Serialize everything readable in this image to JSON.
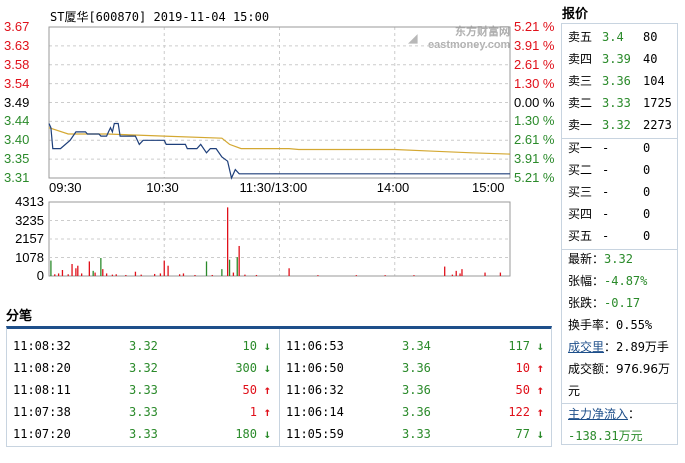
{
  "chart": {
    "title": "ST厦华[600870] 2019-11-04 15:00",
    "watermark": "东方财富网 eastmoney.com",
    "price_labels": [
      "3.67",
      "3.63",
      "3.58",
      "3.54",
      "3.49",
      "3.44",
      "3.40",
      "3.35",
      "3.31"
    ],
    "pct_labels": [
      "5.21 %",
      "3.91 %",
      "2.61 %",
      "1.30 %",
      "0.00 %",
      "1.30 %",
      "2.61 %",
      "3.91 %",
      "5.21 %"
    ],
    "time_labels": [
      "09:30",
      "10:30",
      "11:30/13:00",
      "14:00",
      "15:00"
    ],
    "vol_labels": [
      "4313",
      "3235",
      "2157",
      "1078",
      "0"
    ],
    "colors": {
      "up": "#e0101a",
      "down": "#2a8a2a",
      "flat": "#000000",
      "price_line": "#1e3f7a",
      "avg_line": "#d4a832"
    }
  },
  "chart_data": {
    "type": "line",
    "price_range": [
      3.31,
      3.67
    ],
    "prev_close": 3.49,
    "x_unit": "minutes since 09:30 (trading minutes)",
    "price": [
      [
        0,
        3.44
      ],
      [
        1,
        3.43
      ],
      [
        2,
        3.38
      ],
      [
        6,
        3.38
      ],
      [
        11,
        3.4
      ],
      [
        14,
        3.42
      ],
      [
        19,
        3.42
      ],
      [
        20,
        3.415
      ],
      [
        26,
        3.415
      ],
      [
        27,
        3.41
      ],
      [
        30,
        3.41
      ],
      [
        31,
        3.42
      ],
      [
        32,
        3.43
      ],
      [
        33,
        3.42
      ],
      [
        34,
        3.44
      ],
      [
        36,
        3.44
      ],
      [
        37,
        3.41
      ],
      [
        45,
        3.41
      ],
      [
        47,
        3.39
      ],
      [
        49,
        3.4
      ],
      [
        60,
        3.4
      ],
      [
        61,
        3.39
      ],
      [
        71,
        3.39
      ],
      [
        72,
        3.38
      ],
      [
        77,
        3.38
      ],
      [
        79,
        3.39
      ],
      [
        82,
        3.37
      ],
      [
        84,
        3.38
      ],
      [
        87,
        3.38
      ],
      [
        90,
        3.36
      ],
      [
        93,
        3.35
      ],
      [
        95,
        3.31
      ],
      [
        97,
        3.33
      ],
      [
        99,
        3.32
      ],
      [
        240,
        3.32
      ]
    ],
    "average": [
      [
        0,
        3.43
      ],
      [
        10,
        3.415
      ],
      [
        30,
        3.415
      ],
      [
        60,
        3.41
      ],
      [
        90,
        3.405
      ],
      [
        94,
        3.39
      ],
      [
        100,
        3.38
      ],
      [
        125,
        3.38
      ],
      [
        130,
        3.378
      ],
      [
        180,
        3.378
      ],
      [
        200,
        3.374
      ],
      [
        220,
        3.37
      ],
      [
        240,
        3.367
      ]
    ],
    "volume_max": 4313,
    "volume": [
      [
        1,
        900,
        "d"
      ],
      [
        3,
        100,
        "u"
      ],
      [
        5,
        150,
        "u"
      ],
      [
        7,
        350,
        "u"
      ],
      [
        10,
        100,
        "u"
      ],
      [
        12,
        700,
        "u"
      ],
      [
        14,
        450,
        "u"
      ],
      [
        15,
        600,
        "u"
      ],
      [
        17,
        150,
        "u"
      ],
      [
        21,
        850,
        "u"
      ],
      [
        23,
        300,
        "d"
      ],
      [
        24,
        200,
        "u"
      ],
      [
        27,
        1050,
        "d"
      ],
      [
        28,
        400,
        "u"
      ],
      [
        30,
        150,
        "u"
      ],
      [
        33,
        80,
        "u"
      ],
      [
        35,
        100,
        "u"
      ],
      [
        40,
        60,
        "u"
      ],
      [
        45,
        250,
        "u"
      ],
      [
        48,
        80,
        "u"
      ],
      [
        55,
        120,
        "u"
      ],
      [
        58,
        150,
        "u"
      ],
      [
        60,
        900,
        "u"
      ],
      [
        62,
        600,
        "u"
      ],
      [
        68,
        100,
        "u"
      ],
      [
        70,
        150,
        "u"
      ],
      [
        76,
        60,
        "u"
      ],
      [
        82,
        850,
        "d"
      ],
      [
        85,
        60,
        "u"
      ],
      [
        90,
        400,
        "d"
      ],
      [
        93,
        4000,
        "u"
      ],
      [
        94,
        950,
        "d"
      ],
      [
        96,
        200,
        "u"
      ],
      [
        98,
        1100,
        "d"
      ],
      [
        99,
        1750,
        "u"
      ],
      [
        102,
        80,
        "u"
      ],
      [
        108,
        60,
        "u"
      ],
      [
        125,
        450,
        "u"
      ],
      [
        140,
        50,
        "u"
      ],
      [
        160,
        50,
        "u"
      ],
      [
        175,
        50,
        "u"
      ],
      [
        190,
        50,
        "u"
      ],
      [
        206,
        550,
        "u"
      ],
      [
        210,
        80,
        "u"
      ],
      [
        212,
        300,
        "u"
      ],
      [
        214,
        150,
        "u"
      ],
      [
        215,
        400,
        "u"
      ],
      [
        227,
        200,
        "u"
      ],
      [
        235,
        200,
        "u"
      ]
    ]
  },
  "trades": {
    "title": "分笔",
    "rows": [
      {
        "time": "11:08:32",
        "price": "3.32",
        "vol": "10",
        "dir": "down"
      },
      {
        "time": "11:08:20",
        "price": "3.32",
        "vol": "300",
        "dir": "down"
      },
      {
        "time": "11:08:11",
        "price": "3.33",
        "vol": "50",
        "dir": "up"
      },
      {
        "time": "11:07:38",
        "price": "3.33",
        "vol": "1",
        "dir": "up"
      },
      {
        "time": "11:07:20",
        "price": "3.33",
        "vol": "180",
        "dir": "down"
      },
      {
        "time": "11:06:53",
        "price": "3.34",
        "vol": "117",
        "dir": "down"
      },
      {
        "time": "11:06:50",
        "price": "3.36",
        "vol": "10",
        "dir": "up"
      },
      {
        "time": "11:06:32",
        "price": "3.36",
        "vol": "50",
        "dir": "up"
      },
      {
        "time": "11:06:14",
        "price": "3.36",
        "vol": "122",
        "dir": "up"
      },
      {
        "time": "11:05:59",
        "price": "3.33",
        "vol": "77",
        "dir": "down"
      }
    ]
  },
  "quote": {
    "title": "报价",
    "sell": [
      {
        "label": "卖五",
        "price": "3.4",
        "vol": "80"
      },
      {
        "label": "卖四",
        "price": "3.39",
        "vol": "40"
      },
      {
        "label": "卖三",
        "price": "3.36",
        "vol": "104"
      },
      {
        "label": "卖二",
        "price": "3.33",
        "vol": "1725"
      },
      {
        "label": "卖一",
        "price": "3.32",
        "vol": "2273"
      }
    ],
    "buy": [
      {
        "label": "买一",
        "price": "-",
        "vol": "0"
      },
      {
        "label": "买二",
        "price": "-",
        "vol": "0"
      },
      {
        "label": "买三",
        "price": "-",
        "vol": "0"
      },
      {
        "label": "买四",
        "price": "-",
        "vol": "0"
      },
      {
        "label": "买五",
        "price": "-",
        "vol": "0"
      }
    ],
    "latest_label": "最新：",
    "latest": "3.32",
    "change_pct_label": "张幅：",
    "change_pct": "-4.87%",
    "change_label": "张跌：",
    "change": "-0.17",
    "turnover_label": "换手率：",
    "turnover": "0.55%",
    "volume_label": "成交里",
    "volume_colon": "：",
    "volume": "2.89万手",
    "amount_label": "成交额：",
    "amount": "976.96万元",
    "netflow_label": "主力净流入",
    "netflow_colon": "：",
    "netflow": "-138.31万元"
  }
}
